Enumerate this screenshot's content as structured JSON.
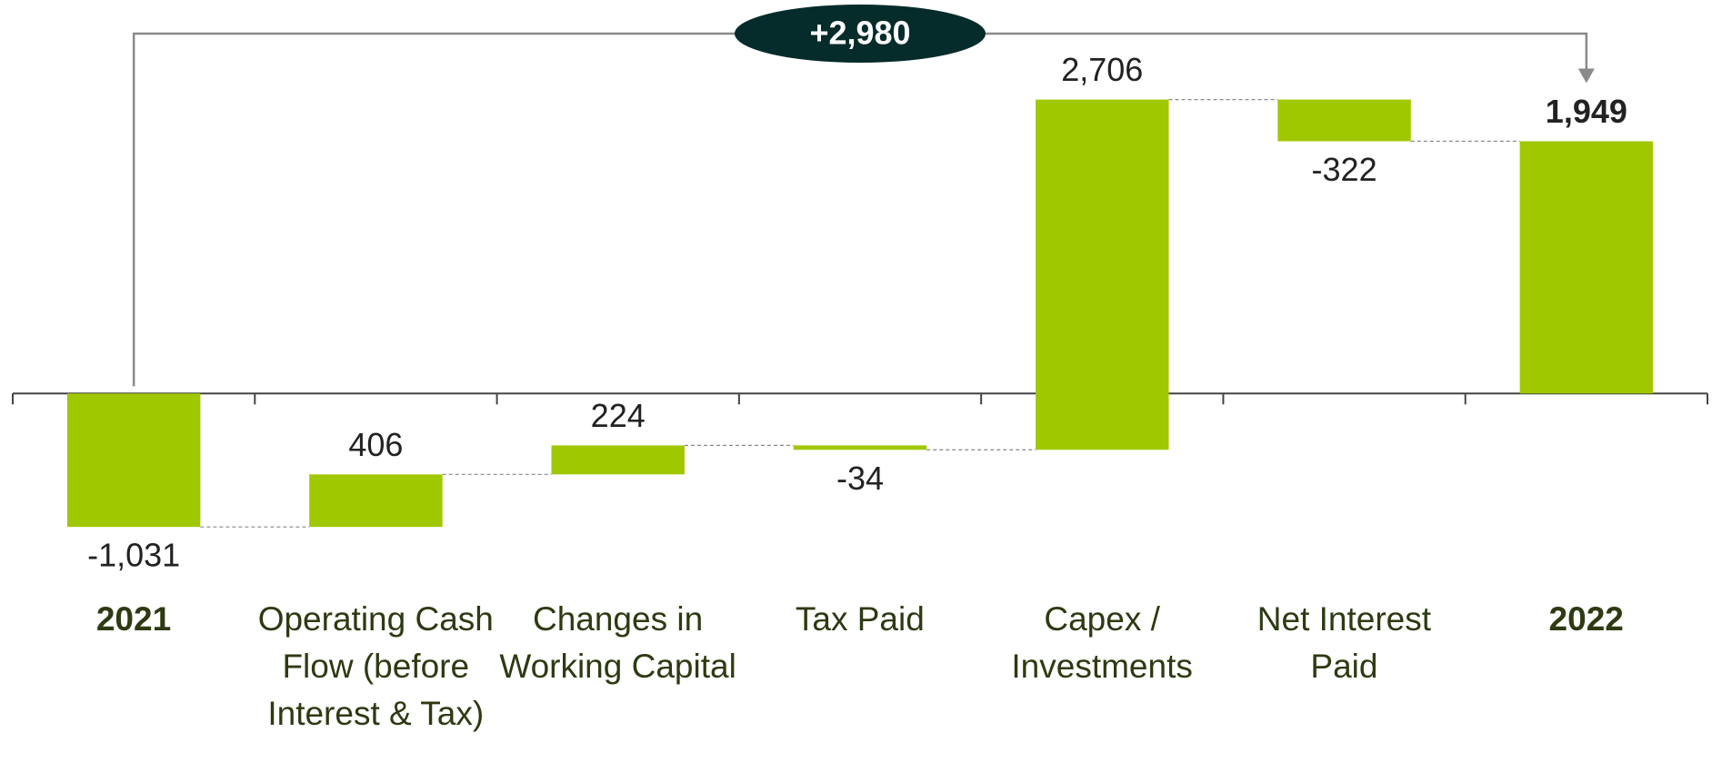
{
  "chart_data": {
    "type": "waterfall",
    "categories": [
      "2021",
      "Operating Cash Flow (before Interest & Tax)",
      "Changes in Working Capital",
      "Tax Paid",
      "Capex / Investments",
      "Net Interest Paid",
      "2022"
    ],
    "values": [
      -1031,
      406,
      224,
      -34,
      2706,
      -322,
      1949
    ],
    "value_labels": [
      "-1,031",
      "406",
      "224",
      "-34",
      "2,706",
      "-322",
      "1,949"
    ],
    "bar_types": [
      "total",
      "relative",
      "relative",
      "relative",
      "relative",
      "relative",
      "total"
    ],
    "annotation": "+2,980",
    "color": "#a0c800",
    "ylim": [
      -1500,
      2500
    ]
  }
}
